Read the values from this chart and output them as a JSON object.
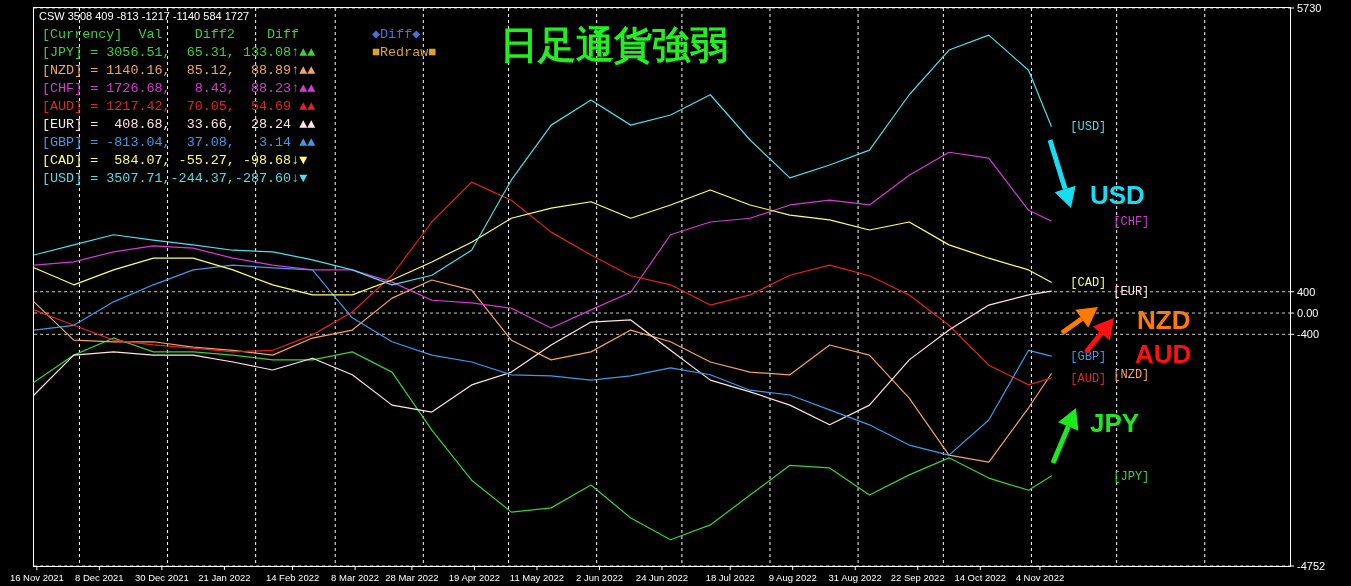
{
  "chart_data": {
    "type": "line",
    "title": "日足通貨強弱",
    "x": [
      "2021-11-15",
      "2021-11-29",
      "2021-12-13",
      "2021-12-27",
      "2022-01-10",
      "2022-01-24",
      "2022-02-07",
      "2022-02-21",
      "2022-03-07",
      "2022-03-21",
      "2022-04-04",
      "2022-04-18",
      "2022-05-02",
      "2022-05-16",
      "2022-05-30",
      "2022-06-13",
      "2022-06-27",
      "2022-07-11",
      "2022-07-25",
      "2022-08-08",
      "2022-08-22",
      "2022-09-05",
      "2022-09-19",
      "2022-10-03",
      "2022-10-17",
      "2022-10-31",
      "2022-11-08"
    ],
    "series": [
      {
        "name": "[JPY]",
        "color": "#3ecf3e",
        "values": [
          -1300,
          -790,
          -470,
          -730,
          -730,
          -790,
          -880,
          -880,
          -730,
          -1110,
          -2200,
          -3140,
          -3740,
          -3660,
          -3230,
          -3850,
          -4260,
          -3980,
          -3420,
          -2860,
          -2910,
          -3420,
          -3040,
          -2720,
          -3100,
          -3330,
          -3060
        ]
      },
      {
        "name": "[NZD]",
        "color": "#f4a460",
        "values": [
          210,
          -510,
          -540,
          -540,
          -640,
          -700,
          -790,
          -470,
          -320,
          280,
          620,
          430,
          -510,
          -880,
          -730,
          -320,
          -540,
          -920,
          -1110,
          -1160,
          -600,
          -790,
          -1600,
          -2670,
          -2800,
          -1780,
          -1140
        ]
      },
      {
        "name": "[CHF]",
        "color": "#d63ad6",
        "values": [
          900,
          960,
          1150,
          1260,
          1220,
          1030,
          900,
          810,
          810,
          580,
          240,
          190,
          90,
          -280,
          60,
          390,
          1470,
          1710,
          1780,
          2030,
          2120,
          2030,
          2590,
          3020,
          2910,
          1930,
          1730
        ]
      },
      {
        "name": "[AUD]",
        "color": "#e02424",
        "values": [
          60,
          -230,
          -510,
          -600,
          -660,
          -730,
          -700,
          -410,
          20,
          710,
          1710,
          2460,
          2120,
          1520,
          1090,
          700,
          530,
          150,
          340,
          710,
          900,
          700,
          340,
          -230,
          -980,
          -1350,
          -1220
        ]
      },
      {
        "name": "[EUR]",
        "color": "#ffe4e8",
        "values": [
          -1540,
          -790,
          -730,
          -790,
          -790,
          -920,
          -1070,
          -850,
          -1160,
          -1730,
          -1860,
          -1350,
          -1110,
          -600,
          -170,
          -130,
          -700,
          -1260,
          -1480,
          -1730,
          -2100,
          -1730,
          -880,
          -320,
          150,
          340,
          410
        ]
      },
      {
        "name": "[GBP]",
        "color": "#3d9be9",
        "values": [
          -320,
          -230,
          210,
          530,
          810,
          900,
          850,
          810,
          -90,
          -540,
          -790,
          -920,
          -1160,
          -1180,
          -1260,
          -1180,
          -1030,
          -1160,
          -1450,
          -1540,
          -1820,
          -2100,
          -2480,
          -2670,
          -2010,
          -700,
          -810
        ]
      },
      {
        "name": "[CAD]",
        "color": "#ffff70",
        "values": [
          850,
          530,
          810,
          1030,
          1030,
          810,
          530,
          340,
          340,
          620,
          960,
          1330,
          1780,
          1970,
          2090,
          1780,
          2030,
          2310,
          2030,
          1840,
          1750,
          1560,
          1710,
          1280,
          1030,
          810,
          580
        ]
      },
      {
        "name": "[USD]",
        "color": "#4fdfe8",
        "values": [
          1090,
          1280,
          1470,
          1370,
          1280,
          1180,
          1150,
          1000,
          810,
          530,
          710,
          1180,
          2500,
          3530,
          4000,
          3530,
          3720,
          4100,
          3250,
          2540,
          2780,
          3060,
          4100,
          4940,
          5220,
          4560,
          3510
        ]
      }
    ],
    "xlim": [
      "2021-11-15",
      "2023-01-31"
    ],
    "xticks": [
      {
        "value": "2021-11-16",
        "label": "16 Nov 2021"
      },
      {
        "value": "2021-12-08",
        "label": "8 Dec 2021"
      },
      {
        "value": "2021-12-30",
        "label": "30 Dec 2021"
      },
      {
        "value": "2022-01-21",
        "label": "21 Jan 2022"
      },
      {
        "value": "2022-02-14",
        "label": "14 Feb 2022"
      },
      {
        "value": "2022-03-08",
        "label": "8 Mar 2022"
      },
      {
        "value": "2022-03-28",
        "label": "28 Mar 2022"
      },
      {
        "value": "2022-04-19",
        "label": "19 Apr 2022"
      },
      {
        "value": "2022-05-11",
        "label": "11 May 2022"
      },
      {
        "value": "2022-06-02",
        "label": "2 Jun 2022"
      },
      {
        "value": "2022-06-24",
        "label": "24 Jun 2022"
      },
      {
        "value": "2022-07-18",
        "label": "18 Jul 2022"
      },
      {
        "value": "2022-08-09",
        "label": "9 Aug 2022"
      },
      {
        "value": "2022-08-31",
        "label": "31 Aug 2022"
      },
      {
        "value": "2022-09-22",
        "label": "22 Sep 2022"
      },
      {
        "value": "2022-10-14",
        "label": "14 Oct 2022"
      },
      {
        "value": "2022-11-04",
        "label": "4 Nov 2022"
      }
    ],
    "ylim": [
      -4752,
      5730
    ],
    "yticks": [
      5730,
      400,
      {
        "value": 0,
        "label": "0.00"
      },
      -400,
      -4752
    ],
    "line_style": "solid",
    "grid": "y",
    "ref_lines": [
      {
        "axis": "x",
        "value": "2021-12-01",
        "color": "#ffffff",
        "line_style": "dashed"
      },
      {
        "axis": "x",
        "value": "2022-01-01",
        "color": "#ffffff",
        "line_style": "dashed"
      },
      {
        "axis": "x",
        "value": "2022-02-01",
        "color": "#ffffff",
        "line_style": "dashed"
      },
      {
        "axis": "x",
        "value": "2022-03-01",
        "color": "#ffffff",
        "line_style": "dashed"
      },
      {
        "axis": "x",
        "value": "2022-04-01",
        "color": "#ffffff",
        "line_style": "dashed"
      },
      {
        "axis": "x",
        "value": "2022-05-01",
        "color": "#ffffff",
        "line_style": "dashed"
      },
      {
        "axis": "x",
        "value": "2022-06-01",
        "color": "#ffffff",
        "line_style": "dashed"
      },
      {
        "axis": "x",
        "value": "2022-07-01",
        "color": "#ffffff",
        "line_style": "dashed"
      },
      {
        "axis": "x",
        "value": "2022-08-01",
        "color": "#ffffff",
        "line_style": "dashed"
      },
      {
        "axis": "x",
        "value": "2022-09-01",
        "color": "#ffffff",
        "line_style": "dashed"
      },
      {
        "axis": "x",
        "value": "2022-10-01",
        "color": "#ffffff",
        "line_style": "dashed"
      },
      {
        "axis": "x",
        "value": "2022-11-01",
        "color": "#ffffff",
        "line_style": "dashed"
      },
      {
        "axis": "x",
        "value": "2022-12-01",
        "color": "#ffffff",
        "line_style": "dashed"
      },
      {
        "axis": "x",
        "value": "2023-01-01",
        "color": "#ffffff",
        "line_style": "dashed"
      }
    ],
    "annotations": [
      "CSW 3508 409 -813 -1217 -1140 584 1727",
      "[Currency]  Val    Diff2    Diff",
      "[JPY] = 3056.51,  65.31, 133.08↑▲▲",
      "[NZD] = 1140.16,  85.12,  88.89↑▲▲",
      "[CHF] = 1726.68,   8.43,  88.23↑▲▲",
      "[AUD] = 1217.42,  70.05,  54.69 ▲▲",
      "[EUR] =  408.68,  33.66,  28.24 ▲▲",
      "[GBP] = -813.04,  37.08,   3.14 ▲▲",
      "[CAD] =  584.07, -55.27, -98.68↓▼",
      "[USD] = 3507.71,-244.37,-287.60↓▼",
      "◆Diff◆",
      "■Redraw■",
      "USD",
      "NZD",
      "AUD",
      "JPY"
    ]
  }
}
